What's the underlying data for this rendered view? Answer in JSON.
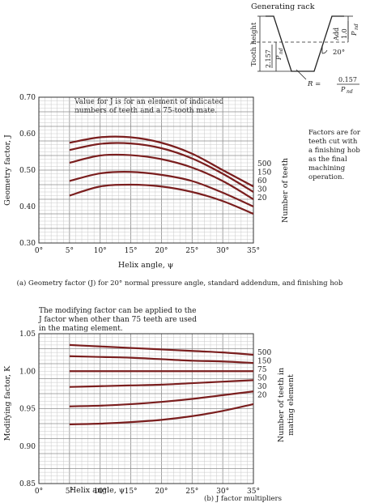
{
  "rack": {
    "title": "Generating rack",
    "tooth_height": "Tooth height",
    "add_label": "Add",
    "add_num": "1.0",
    "add_den": "P",
    "add_sub": "nd",
    "dep_num": "2.157",
    "dep_den": "P",
    "dep_sub": "nd",
    "angle": "20°",
    "r_prefix": "R =",
    "r_num": "0.157",
    "r_den": "P",
    "r_sub": "nd"
  },
  "chart_data": [
    {
      "type": "line",
      "note_line1": "Value for J is for an element of indicated",
      "note_line2": "numbers of teeth and a 75-tooth mate.",
      "side_note": [
        "Factors are for",
        "teeth cut with",
        "a finishing hob",
        "as the final",
        "machining",
        "operation."
      ],
      "xlabel": "Helix angle, ψ",
      "ylabel": "Geometry factor, J",
      "right_label": "Number of teeth",
      "caption": "(a) Geometry factor (J)  for 20° normal pressure angle, standard addendum, and finishing hob",
      "xlim": [
        0,
        35
      ],
      "ylim": [
        0.3,
        0.7
      ],
      "xticks": [
        "0°",
        "5°",
        "10°",
        "15°",
        "20°",
        "25°",
        "30°",
        "35°"
      ],
      "yticks": [
        "0.30",
        "0.40",
        "0.50",
        "0.60",
        "0.70"
      ],
      "x": [
        5,
        10,
        15,
        20,
        25,
        30,
        35
      ],
      "series": [
        {
          "name": "500",
          "values": [
            0.575,
            0.59,
            0.59,
            0.575,
            0.545,
            0.5,
            0.455
          ]
        },
        {
          "name": "150",
          "values": [
            0.555,
            0.572,
            0.573,
            0.56,
            0.532,
            0.49,
            0.44
          ]
        },
        {
          "name": "60",
          "values": [
            0.52,
            0.54,
            0.541,
            0.53,
            0.507,
            0.47,
            0.42
          ]
        },
        {
          "name": "30",
          "values": [
            0.47,
            0.491,
            0.495,
            0.487,
            0.47,
            0.438,
            0.4
          ]
        },
        {
          "name": "20",
          "values": [
            0.43,
            0.455,
            0.46,
            0.455,
            0.44,
            0.415,
            0.38
          ]
        }
      ]
    },
    {
      "type": "line",
      "note_line1": "The modifying factor can be applied to the",
      "note_line2": "J factor when other than 75 teeth are used",
      "note_line3": "in the mating element.",
      "xlabel": "Helix angle, ψ",
      "ylabel": "Modifying factor, K",
      "right_label_1": "Number of teeth in",
      "right_label_2": "mating element",
      "caption": "(b) J factor multipliers",
      "xlim": [
        0,
        35
      ],
      "ylim": [
        0.85,
        1.05
      ],
      "xticks": [
        "0°",
        "5°",
        "10°",
        "15°",
        "20°",
        "25°",
        "30°",
        "35°"
      ],
      "yticks": [
        "0.85",
        "0.90",
        "0.95",
        "1.00",
        "1.05"
      ],
      "x": [
        5,
        10,
        15,
        20,
        25,
        30,
        35
      ],
      "series": [
        {
          "name": "500",
          "values": [
            1.035,
            1.033,
            1.031,
            1.029,
            1.027,
            1.025,
            1.022
          ]
        },
        {
          "name": "150",
          "values": [
            1.02,
            1.019,
            1.018,
            1.016,
            1.014,
            1.013,
            1.011
          ]
        },
        {
          "name": "75",
          "values": [
            1.0,
            1.0,
            1.0,
            1.0,
            1.0,
            1.0,
            1.0
          ]
        },
        {
          "name": "50",
          "values": [
            0.979,
            0.98,
            0.981,
            0.982,
            0.984,
            0.986,
            0.988
          ]
        },
        {
          "name": "30",
          "values": [
            0.953,
            0.954,
            0.956,
            0.959,
            0.963,
            0.968,
            0.973
          ]
        },
        {
          "name": "20",
          "values": [
            0.929,
            0.93,
            0.932,
            0.935,
            0.94,
            0.947,
            0.956
          ]
        }
      ]
    }
  ]
}
